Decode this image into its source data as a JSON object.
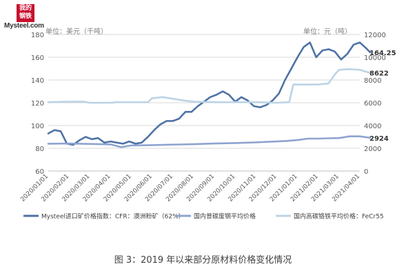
{
  "logo": {
    "mark_line1": "我的",
    "mark_line2": "钢铁",
    "text": "Mysteel.com"
  },
  "units": {
    "left": "单位：美元（千吨）",
    "right": "单位：元（吨）"
  },
  "caption": "图 3：2019 年以来部分原材料价格变化情况",
  "colors": {
    "iron_ore": "#4e72a6",
    "scrap": "#8ea3d0",
    "ferrochrome": "#bcd3e6",
    "grid": "#d9d9d9",
    "axis_text": "#595959"
  },
  "chart_data": {
    "type": "line",
    "x_tick_labels": [
      "2020/01/01",
      "2020/02/01",
      "2020/03/01",
      "2020/04/01",
      "2020/05/01",
      "2020/06/01",
      "2020/07/01",
      "2020/08/01",
      "2020/09/01",
      "2020/10/01",
      "2020/11/01",
      "2020/12/01",
      "2021/01/01",
      "2021/02/01",
      "2021/03/01",
      "2021/04/01"
    ],
    "y_left": {
      "min": 60,
      "max": 180,
      "ticks": [
        60,
        80,
        100,
        120,
        140,
        160,
        180
      ]
    },
    "y_right": {
      "min": 0,
      "max": 12000,
      "ticks": [
        0,
        2000,
        4000,
        6000,
        8000,
        10000,
        12000
      ]
    },
    "grid": "horizontal",
    "legend_position": "bottom",
    "series": [
      {
        "name": "Mysteel进口矿价格指数：CFR：澳洲粉矿（62%）",
        "axis": "left",
        "end_label": "164.25",
        "x": [
          0,
          0.3,
          0.6,
          0.9,
          1.2,
          1.5,
          1.8,
          2.1,
          2.4,
          2.7,
          3.0,
          3.3,
          3.6,
          3.9,
          4.2,
          4.5,
          4.8,
          5.1,
          5.4,
          5.7,
          6.0,
          6.3,
          6.6,
          6.9,
          7.2,
          7.5,
          7.8,
          8.1,
          8.4,
          8.7,
          9.0,
          9.3,
          9.6,
          9.9,
          10.2,
          10.5,
          10.8,
          11.1,
          11.4,
          11.7,
          12.0,
          12.3,
          12.6,
          12.9,
          13.2,
          13.5,
          13.8,
          14.1,
          14.4,
          14.7,
          15.0,
          15.3,
          15.5
        ],
        "y": [
          93,
          96,
          95,
          84,
          83,
          87,
          90,
          88,
          89,
          85,
          86,
          85,
          84,
          86,
          84,
          85,
          90,
          96,
          101,
          104,
          104,
          106,
          112,
          112,
          117,
          121,
          125,
          127,
          130,
          127,
          121,
          125,
          122,
          117,
          116,
          118,
          122,
          128,
          140,
          150,
          160,
          169,
          173,
          160,
          166,
          167,
          165,
          158,
          163,
          171,
          173,
          168,
          164.25
        ]
      },
      {
        "name": "国内普碳废钢平均价格",
        "axis": "right",
        "end_label": "2924",
        "x": [
          0,
          1,
          2,
          3,
          3.5,
          4,
          5,
          6,
          7,
          8,
          9,
          10,
          11,
          11.5,
          12,
          12.5,
          13,
          13.5,
          14,
          14.5,
          15,
          15.5
        ],
        "y": [
          2400,
          2420,
          2380,
          2340,
          2100,
          2250,
          2280,
          2320,
          2360,
          2420,
          2460,
          2520,
          2600,
          2650,
          2720,
          2850,
          2850,
          2880,
          2900,
          3050,
          3050,
          2924
        ]
      },
      {
        "name": "国内高碳铬铁平均价格：FeCr55",
        "axis": "right",
        "end_label": "8622",
        "x": [
          0,
          1,
          1.7,
          2,
          3,
          3.3,
          4,
          4.8,
          5,
          5.5,
          6,
          6.5,
          7,
          8,
          9,
          10,
          11,
          11.6,
          11.8,
          12,
          12.5,
          13,
          13.5,
          13.8,
          14,
          14.5,
          15,
          15.5
        ],
        "y": [
          6050,
          6100,
          6100,
          6000,
          6000,
          6050,
          6050,
          6050,
          6400,
          6500,
          6350,
          6200,
          6100,
          6050,
          6050,
          6050,
          6000,
          6050,
          7600,
          7600,
          7600,
          7600,
          7700,
          8500,
          8900,
          8950,
          8900,
          8622
        ]
      }
    ]
  }
}
